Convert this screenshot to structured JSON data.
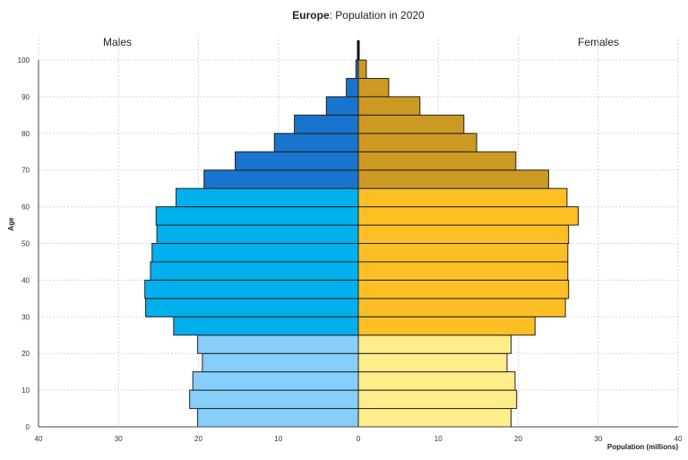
{
  "chart_data": {
    "type": "bar",
    "orientation": "horizontal-pyramid",
    "title_bold": "Europe",
    "title_rest": ": Population in 2020",
    "xlabel": "Population (millions)",
    "ylabel": "Age",
    "left_label": "Males",
    "right_label": "Females",
    "xlim": [
      -40,
      40
    ],
    "ylim": [
      0,
      100
    ],
    "xticks": [
      40,
      30,
      20,
      10,
      0,
      10,
      20,
      30,
      40
    ],
    "yticks": [
      0,
      10,
      20,
      30,
      40,
      50,
      60,
      70,
      80,
      90,
      100
    ],
    "grid": true,
    "categories": [
      "0-4",
      "5-9",
      "10-14",
      "15-19",
      "20-24",
      "25-29",
      "30-34",
      "35-39",
      "40-44",
      "45-49",
      "50-54",
      "55-59",
      "60-64",
      "65-69",
      "70-74",
      "75-79",
      "80-84",
      "85-89",
      "90-94",
      "95-99",
      "100+"
    ],
    "series": [
      {
        "name": "Males",
        "values": [
          20.1,
          21.1,
          20.7,
          19.5,
          20.1,
          23.1,
          26.6,
          26.7,
          26.0,
          25.8,
          25.2,
          25.3,
          22.8,
          19.3,
          15.4,
          10.5,
          8.0,
          4.0,
          1.5,
          0.3,
          0.05
        ]
      },
      {
        "name": "Females",
        "values": [
          19.1,
          19.8,
          19.6,
          18.6,
          19.1,
          22.1,
          25.9,
          26.3,
          26.2,
          26.2,
          26.3,
          27.5,
          26.1,
          23.8,
          19.7,
          14.8,
          13.2,
          7.7,
          3.8,
          1.0,
          0.1
        ]
      }
    ],
    "colors": {
      "males_young": "#87cefa",
      "males_working": "#00b0ec",
      "males_old": "#1874cd",
      "females_young": "#ffec8b",
      "females_working": "#fdbf24",
      "females_old": "#cc9a22"
    }
  }
}
